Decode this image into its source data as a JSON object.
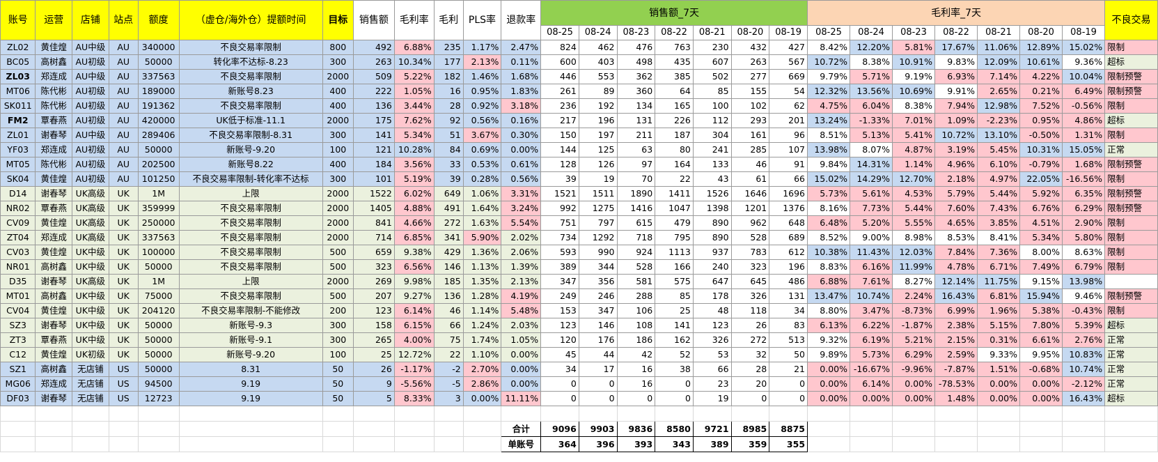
{
  "headers": {
    "account": "账号",
    "operator": "运营",
    "shop": "店铺",
    "site": "站点",
    "quota": "额度",
    "time": "（虚仓/海外仓）提额时间",
    "target": "目标",
    "sales": "销售额",
    "gm_rate": "毛利率",
    "gm": "毛利",
    "pls": "PLS率",
    "refund": "退款率",
    "sales7": "销售额_7天",
    "gm7": "毛利率_7天",
    "bad": "不良交易",
    "dates": [
      "08-25",
      "08-24",
      "08-23",
      "08-22",
      "08-21",
      "08-20",
      "08-19"
    ]
  },
  "colors": {
    "yellow": "#ffff00",
    "green": "#92d050",
    "orange": "#fcd5b4",
    "au_blue": "#c6d9f1",
    "uk_green": "#ebf1de",
    "pink": "#ffc7ce",
    "red_text": "#ff0000"
  },
  "rows": [
    {
      "acc": "ZL02",
      "op": "黄佳煌",
      "shop": "AU中级",
      "site": "AU",
      "quota": "340000",
      "time": "不良交易率限制",
      "target": "800",
      "sales": "492",
      "gmr": "6.88%",
      "gm": "235",
      "pls": "1.17%",
      "ref": "2.47%",
      "s7": [
        "824",
        "462",
        "476",
        "763",
        "230",
        "432",
        "427"
      ],
      "g7": [
        "8.42%",
        "12.20%",
        "5.81%",
        "17.67%",
        "11.06%",
        "12.89%",
        "15.02%"
      ],
      "bad": "限制"
    },
    {
      "acc": "BC05",
      "op": "高树鑫",
      "shop": "AU初级",
      "site": "AU",
      "quota": "50000",
      "time": "转化率不达标-8.23",
      "target": "300",
      "sales": "263",
      "gmr": "10.34%",
      "gm": "177",
      "pls": "2.13%",
      "ref": "0.11%",
      "s7": [
        "600",
        "403",
        "498",
        "435",
        "607",
        "263",
        "567"
      ],
      "g7": [
        "10.72%",
        "8.38%",
        "10.91%",
        "9.83%",
        "12.09%",
        "10.61%",
        "9.36%"
      ],
      "bad": "超标"
    },
    {
      "acc": "ZL03",
      "op": "郑连成",
      "shop": "AU中级",
      "site": "AU",
      "quota": "337563",
      "time": "不良交易率限制",
      "target": "2000",
      "sales": "509",
      "gmr": "5.22%",
      "gm": "182",
      "pls": "1.46%",
      "ref": "1.68%",
      "s7": [
        "446",
        "553",
        "362",
        "385",
        "502",
        "277",
        "669"
      ],
      "g7": [
        "9.79%",
        "5.71%",
        "9.19%",
        "6.93%",
        "7.14%",
        "4.22%",
        "10.04%"
      ],
      "bad": "限制预警"
    },
    {
      "acc": "MT06",
      "op": "陈代彬",
      "shop": "AU初级",
      "site": "AU",
      "quota": "189000",
      "time": "新账号8.23",
      "target": "400",
      "sales": "222",
      "gmr": "1.05%",
      "gm": "16",
      "pls": "0.95%",
      "ref": "1.83%",
      "s7": [
        "261",
        "89",
        "360",
        "64",
        "85",
        "155",
        "54"
      ],
      "g7": [
        "12.32%",
        "13.56%",
        "10.69%",
        "9.91%",
        "2.65%",
        "0.21%",
        "6.49%"
      ],
      "bad": "限制预警"
    },
    {
      "acc": "SK011",
      "op": "陈代彬",
      "shop": "AU初级",
      "site": "AU",
      "quota": "191362",
      "time": "不良交易率限制",
      "target": "400",
      "sales": "136",
      "gmr": "3.44%",
      "gm": "28",
      "pls": "0.92%",
      "ref": "3.18%",
      "s7": [
        "236",
        "192",
        "134",
        "165",
        "100",
        "102",
        "62"
      ],
      "g7": [
        "4.75%",
        "6.04%",
        "8.38%",
        "7.94%",
        "12.98%",
        "7.52%",
        "-0.56%"
      ],
      "bad": "限制"
    },
    {
      "acc": "FM2",
      "op": "覃春燕",
      "shop": "AU初级",
      "site": "AU",
      "quota": "420000",
      "time": "UK低于标准-11.1",
      "target": "2000",
      "sales": "175",
      "gmr": "7.62%",
      "gm": "92",
      "pls": "0.56%",
      "ref": "0.16%",
      "s7": [
        "217",
        "196",
        "131",
        "226",
        "112",
        "293",
        "201"
      ],
      "g7": [
        "13.24%",
        "-1.33%",
        "7.01%",
        "1.09%",
        "-2.23%",
        "0.95%",
        "4.86%"
      ],
      "bad": "超标"
    },
    {
      "acc": "ZL01",
      "op": "谢春琴",
      "shop": "AU中级",
      "site": "AU",
      "quota": "289406",
      "time": "不良交易率限制-8.31",
      "target": "300",
      "sales": "141",
      "gmr": "5.34%",
      "gm": "51",
      "pls": "3.67%",
      "ref": "0.30%",
      "s7": [
        "150",
        "197",
        "211",
        "187",
        "304",
        "161",
        "96"
      ],
      "g7": [
        "8.51%",
        "5.13%",
        "5.41%",
        "10.72%",
        "13.10%",
        "-0.50%",
        "1.31%"
      ],
      "bad": "限制"
    },
    {
      "acc": "YF03",
      "op": "郑连成",
      "shop": "AU初级",
      "site": "AU",
      "quota": "50000",
      "time": "新账号-9.20",
      "target": "100",
      "sales": "121",
      "gmr": "10.28%",
      "gm": "84",
      "pls": "0.69%",
      "ref": "0.00%",
      "s7": [
        "144",
        "125",
        "63",
        "80",
        "241",
        "285",
        "107"
      ],
      "g7": [
        "13.98%",
        "8.07%",
        "4.87%",
        "3.19%",
        "5.45%",
        "10.31%",
        "15.05%"
      ],
      "bad": "正常"
    },
    {
      "acc": "MT05",
      "op": "陈代彬",
      "shop": "AU初级",
      "site": "AU",
      "quota": "202500",
      "time": "新账号8.22",
      "target": "400",
      "sales": "184",
      "gmr": "3.56%",
      "gm": "33",
      "pls": "0.53%",
      "ref": "0.61%",
      "s7": [
        "128",
        "126",
        "97",
        "164",
        "133",
        "46",
        "91"
      ],
      "g7": [
        "9.84%",
        "14.31%",
        "1.14%",
        "4.96%",
        "6.10%",
        "-0.79%",
        "1.68%"
      ],
      "bad": "限制预警"
    },
    {
      "acc": "SK04",
      "op": "黄佳煌",
      "shop": "AU初级",
      "site": "AU",
      "quota": "101250",
      "time": "不良交易率限制-转化率不达标",
      "target": "300",
      "sales": "101",
      "gmr": "5.19%",
      "gm": "39",
      "pls": "0.28%",
      "ref": "0.56%",
      "s7": [
        "39",
        "19",
        "70",
        "22",
        "43",
        "61",
        "66"
      ],
      "g7": [
        "15.02%",
        "14.29%",
        "12.70%",
        "2.18%",
        "4.97%",
        "22.05%",
        "-16.56%"
      ],
      "bad": "限制"
    },
    {
      "acc": "D14",
      "op": "谢春琴",
      "shop": "UK高级",
      "site": "UK",
      "quota": "1M",
      "time": "上限",
      "target": "2000",
      "sales": "1522",
      "gmr": "6.02%",
      "gm": "649",
      "pls": "1.06%",
      "ref": "3.31%",
      "s7": [
        "1521",
        "1511",
        "1890",
        "1411",
        "1526",
        "1646",
        "1696"
      ],
      "g7": [
        "5.73%",
        "5.61%",
        "4.53%",
        "5.79%",
        "5.44%",
        "5.92%",
        "6.35%"
      ],
      "bad": "限制预警"
    },
    {
      "acc": "NR02",
      "op": "覃春燕",
      "shop": "UK高级",
      "site": "UK",
      "quota": "359999",
      "time": "不良交易率限制",
      "target": "2000",
      "sales": "1405",
      "gmr": "4.88%",
      "gm": "491",
      "pls": "1.64%",
      "ref": "3.24%",
      "s7": [
        "992",
        "1275",
        "1416",
        "1047",
        "1398",
        "1201",
        "1376"
      ],
      "g7": [
        "8.16%",
        "7.73%",
        "5.44%",
        "7.60%",
        "7.43%",
        "6.76%",
        "6.29%"
      ],
      "bad": "限制预警"
    },
    {
      "acc": "CV09",
      "op": "黄佳煌",
      "shop": "UK高级",
      "site": "UK",
      "quota": "250000",
      "time": "不良交易率限制",
      "target": "2000",
      "sales": "841",
      "gmr": "4.66%",
      "gm": "272",
      "pls": "1.63%",
      "ref": "5.54%",
      "s7": [
        "751",
        "797",
        "615",
        "479",
        "890",
        "962",
        "648"
      ],
      "g7": [
        "6.48%",
        "5.20%",
        "5.55%",
        "4.65%",
        "3.85%",
        "4.51%",
        "2.90%"
      ],
      "bad": "限制"
    },
    {
      "acc": "ZT04",
      "op": "郑连成",
      "shop": "UK高级",
      "site": "UK",
      "quota": "337563",
      "time": "不良交易率限制",
      "target": "2000",
      "sales": "714",
      "gmr": "6.85%",
      "gm": "341",
      "pls": "5.90%",
      "ref": "2.02%",
      "s7": [
        "734",
        "1292",
        "718",
        "795",
        "890",
        "528",
        "689"
      ],
      "g7": [
        "8.52%",
        "9.00%",
        "8.98%",
        "8.53%",
        "8.41%",
        "5.34%",
        "5.80%"
      ],
      "bad": "限制"
    },
    {
      "acc": "CV03",
      "op": "黄佳煌",
      "shop": "UK中级",
      "site": "UK",
      "quota": "100000",
      "time": "不良交易率限制",
      "target": "500",
      "sales": "659",
      "gmr": "9.38%",
      "gm": "429",
      "pls": "1.36%",
      "ref": "2.06%",
      "s7": [
        "593",
        "990",
        "924",
        "1113",
        "937",
        "783",
        "612"
      ],
      "g7": [
        "10.38%",
        "11.43%",
        "12.03%",
        "7.84%",
        "7.36%",
        "8.00%",
        "8.63%"
      ],
      "bad": "限制"
    },
    {
      "acc": "NR01",
      "op": "高树鑫",
      "shop": "UK中级",
      "site": "UK",
      "quota": "50000",
      "time": "不良交易率限制",
      "target": "500",
      "sales": "323",
      "gmr": "6.56%",
      "gm": "146",
      "pls": "1.13%",
      "ref": "1.39%",
      "s7": [
        "389",
        "344",
        "528",
        "166",
        "240",
        "323",
        "196"
      ],
      "g7": [
        "8.83%",
        "6.16%",
        "11.99%",
        "4.78%",
        "6.71%",
        "7.49%",
        "6.79%"
      ],
      "bad": "限制"
    },
    {
      "acc": "D35",
      "op": "谢春琴",
      "shop": "UK高级",
      "site": "UK",
      "quota": "1M",
      "time": "上限",
      "target": "2000",
      "sales": "269",
      "gmr": "9.98%",
      "gm": "185",
      "pls": "1.35%",
      "ref": "2.13%",
      "s7": [
        "347",
        "356",
        "581",
        "575",
        "647",
        "645",
        "486"
      ],
      "g7": [
        "6.88%",
        "7.61%",
        "8.27%",
        "12.14%",
        "11.75%",
        "9.15%",
        "13.98%"
      ],
      "bad": ""
    },
    {
      "acc": "MT01",
      "op": "高树鑫",
      "shop": "UK中级",
      "site": "UK",
      "quota": "75000",
      "time": "不良交易率限制",
      "target": "500",
      "sales": "207",
      "gmr": "9.27%",
      "gm": "136",
      "pls": "1.28%",
      "ref": "4.19%",
      "s7": [
        "249",
        "246",
        "288",
        "85",
        "178",
        "326",
        "131"
      ],
      "g7": [
        "13.47%",
        "10.74%",
        "2.24%",
        "16.43%",
        "6.81%",
        "15.94%",
        "9.46%"
      ],
      "bad": "限制预警"
    },
    {
      "acc": "CV04",
      "op": "黄佳煌",
      "shop": "UK中级",
      "site": "UK",
      "quota": "204120",
      "time": "不良交易率限制-不能修改",
      "target": "200",
      "sales": "123",
      "gmr": "6.14%",
      "gm": "46",
      "pls": "1.14%",
      "ref": "5.48%",
      "s7": [
        "153",
        "347",
        "106",
        "25",
        "48",
        "118",
        "34"
      ],
      "g7": [
        "8.80%",
        "3.47%",
        "-8.73%",
        "6.99%",
        "1.96%",
        "5.38%",
        "-0.43%"
      ],
      "bad": "限制"
    },
    {
      "acc": "SZ3",
      "op": "谢春琴",
      "shop": "UK中级",
      "site": "UK",
      "quota": "50000",
      "time": "新账号-9.3",
      "target": "300",
      "sales": "158",
      "gmr": "6.15%",
      "gm": "66",
      "pls": "1.24%",
      "ref": "2.03%",
      "s7": [
        "123",
        "146",
        "108",
        "141",
        "123",
        "26",
        "83"
      ],
      "g7": [
        "6.13%",
        "6.22%",
        "-1.87%",
        "2.38%",
        "5.15%",
        "7.80%",
        "5.39%"
      ],
      "bad": "超标"
    },
    {
      "acc": "ZT3",
      "op": "覃春燕",
      "shop": "UK中级",
      "site": "UK",
      "quota": "50000",
      "time": "新账号-9.1",
      "target": "300",
      "sales": "265",
      "gmr": "4.00%",
      "gm": "75",
      "pls": "1.74%",
      "ref": "1.05%",
      "s7": [
        "120",
        "176",
        "186",
        "162",
        "326",
        "272",
        "513"
      ],
      "g7": [
        "9.32%",
        "6.19%",
        "5.21%",
        "2.15%",
        "0.31%",
        "6.61%",
        "2.76%"
      ],
      "bad": "正常"
    },
    {
      "acc": "C12",
      "op": "黄佳煌",
      "shop": "UK初级",
      "site": "UK",
      "quota": "50000",
      "time": "新账号-9.20",
      "target": "100",
      "sales": "25",
      "gmr": "12.72%",
      "gm": "22",
      "pls": "1.10%",
      "ref": "0.00%",
      "s7": [
        "45",
        "44",
        "42",
        "52",
        "53",
        "32",
        "50"
      ],
      "g7": [
        "9.89%",
        "5.73%",
        "6.29%",
        "2.59%",
        "9.33%",
        "9.95%",
        "10.83%"
      ],
      "bad": "正常"
    },
    {
      "acc": "SZ1",
      "op": "高树鑫",
      "shop": "无店铺",
      "site": "US",
      "quota": "50000",
      "time": "8.31",
      "target": "50",
      "sales": "26",
      "gmr": "-1.17%",
      "gm": "-2",
      "pls": "2.70%",
      "ref": "0.00%",
      "s7": [
        "34",
        "17",
        "16",
        "38",
        "66",
        "28",
        "21"
      ],
      "g7": [
        "0.00%",
        "-16.67%",
        "-9.96%",
        "-7.87%",
        "1.51%",
        "-0.68%",
        "10.74%"
      ],
      "bad": "正常"
    },
    {
      "acc": "MG06",
      "op": "郑连成",
      "shop": "无店铺",
      "site": "US",
      "quota": "94500",
      "time": "9.19",
      "target": "50",
      "sales": "9",
      "gmr": "-5.56%",
      "gm": "-5",
      "pls": "2.86%",
      "ref": "0.00%",
      "s7": [
        "0",
        "0",
        "16",
        "0",
        "23",
        "20",
        "0"
      ],
      "g7": [
        "0.00%",
        "6.14%",
        "0.00%",
        "-78.53%",
        "0.00%",
        "0.00%",
        "-2.12%"
      ],
      "bad": "正常"
    },
    {
      "acc": "DF03",
      "op": "谢春琴",
      "shop": "无店铺",
      "site": "US",
      "quota": "12723",
      "time": "9.19",
      "target": "50",
      "sales": "5",
      "gmr": "8.33%",
      "gm": "3",
      "pls": "0.00%",
      "ref": "11.11%",
      "s7": [
        "0",
        "0",
        "0",
        "0",
        "19",
        "0",
        "0"
      ],
      "g7": [
        "0.00%",
        "0.00%",
        "0.00%",
        "1.48%",
        "0.00%",
        "0.00%",
        "16.43%"
      ],
      "bad": "超标"
    }
  ],
  "totals": {
    "label": "合计",
    "values": [
      "9096",
      "9903",
      "9836",
      "8580",
      "9721",
      "8985",
      "8875"
    ]
  },
  "per_account": {
    "label": "单账号",
    "values": [
      "364",
      "396",
      "393",
      "343",
      "389",
      "359",
      "355"
    ]
  }
}
